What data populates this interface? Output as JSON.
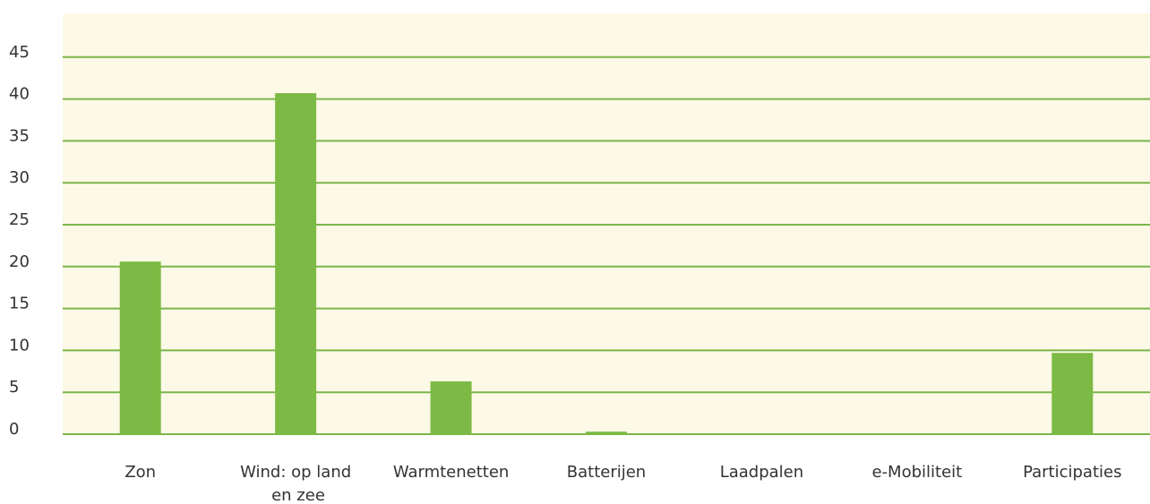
{
  "chart_data": {
    "type": "bar",
    "categories": [
      "Zon",
      "Wind: op land en zee",
      "Warmtenetten",
      "Batterijen",
      "Laadpalen",
      "e-Mobiliteit",
      "Participaties"
    ],
    "values": [
      20.6,
      40.7,
      6.3,
      0.3,
      0,
      0,
      9.7
    ],
    "color": "#7dba45",
    "ylim": [
      0,
      50
    ],
    "yticks": [
      0,
      5,
      10,
      15,
      20,
      25,
      30,
      35,
      40,
      45
    ],
    "grid": true
  }
}
